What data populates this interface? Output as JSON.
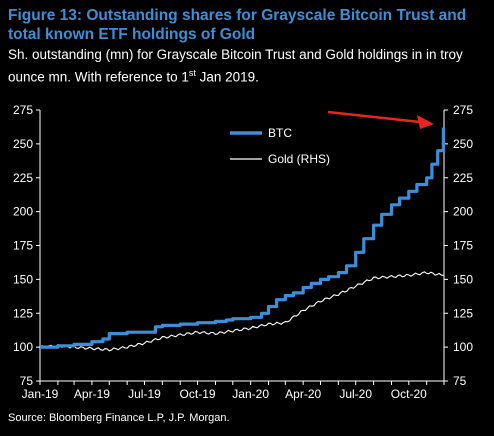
{
  "header": {
    "title": "Figure 13: Outstanding shares for Grayscale Bitcoin Trust and total known ETF holdings of Gold",
    "subtitle_pre": "Sh. outstanding (mn) for Grayscale Bitcoin Trust and Gold holdings in in troy ounce mn. With reference to 1",
    "subtitle_sup": "st",
    "subtitle_post": " Jan 2019."
  },
  "footer": {
    "source": "Source: Bloomberg Finance L.P, J.P. Morgan."
  },
  "colors": {
    "btc": "#3b8fd9",
    "gold": "#ffffff",
    "arrow": "#e8261f",
    "background": "#000000"
  },
  "chart_data": {
    "type": "line",
    "title": "Figure 13: Outstanding shares for Grayscale Bitcoin Trust and total known ETF holdings of Gold",
    "xlabel": "",
    "ylabel": "",
    "x_ticks": [
      "Jan-19",
      "Apr-19",
      "Jul-19",
      "Oct-19",
      "Jan-20",
      "Apr-20",
      "Jul-20",
      "Oct-20"
    ],
    "ylim_left": [
      75,
      275
    ],
    "ylim_right": [
      75,
      275
    ],
    "y_ticks_left": [
      75,
      100,
      125,
      150,
      175,
      200,
      225,
      250,
      275
    ],
    "y_ticks_right": [
      75,
      100,
      125,
      150,
      175,
      200,
      225,
      250,
      275
    ],
    "legend": {
      "placement": "top-center"
    },
    "annotation": "arrow pointing to latest BTC value",
    "series": [
      {
        "name": "BTC",
        "axis": "left",
        "x": [
          "2019-01-01",
          "2019-02-01",
          "2019-03-01",
          "2019-04-01",
          "2019-04-20",
          "2019-05-01",
          "2019-06-01",
          "2019-07-01",
          "2019-07-20",
          "2019-08-01",
          "2019-09-01",
          "2019-10-01",
          "2019-11-01",
          "2019-11-20",
          "2019-12-01",
          "2020-01-01",
          "2020-01-20",
          "2020-02-01",
          "2020-02-15",
          "2020-03-01",
          "2020-03-15",
          "2020-04-01",
          "2020-04-15",
          "2020-05-01",
          "2020-05-15",
          "2020-06-01",
          "2020-06-15",
          "2020-07-01",
          "2020-07-15",
          "2020-08-01",
          "2020-08-15",
          "2020-09-01",
          "2020-09-15",
          "2020-10-01",
          "2020-10-15",
          "2020-11-01",
          "2020-11-10",
          "2020-11-20",
          "2020-11-30"
        ],
        "values": [
          100,
          101,
          102,
          104,
          106,
          110,
          111,
          111,
          115,
          116,
          117,
          118,
          119,
          120,
          121,
          122,
          125,
          130,
          135,
          138,
          140,
          144,
          147,
          150,
          152,
          155,
          160,
          170,
          180,
          190,
          198,
          205,
          210,
          215,
          220,
          225,
          235,
          245,
          262
        ]
      },
      {
        "name": "Gold (RHS)",
        "axis": "right",
        "x": [
          "2019-01-01",
          "2019-02-01",
          "2019-03-01",
          "2019-04-01",
          "2019-05-01",
          "2019-06-01",
          "2019-07-01",
          "2019-08-01",
          "2019-09-01",
          "2019-10-01",
          "2019-11-01",
          "2019-12-01",
          "2020-01-01",
          "2020-02-01",
          "2020-03-01",
          "2020-04-01",
          "2020-05-01",
          "2020-06-01",
          "2020-07-01",
          "2020-08-01",
          "2020-09-01",
          "2020-10-01",
          "2020-11-01",
          "2020-11-30"
        ],
        "values": [
          100,
          101,
          100,
          99,
          98,
          100,
          103,
          107,
          109,
          111,
          110,
          112,
          114,
          117,
          118,
          127,
          134,
          139,
          145,
          151,
          152,
          153,
          155,
          153
        ]
      }
    ]
  }
}
